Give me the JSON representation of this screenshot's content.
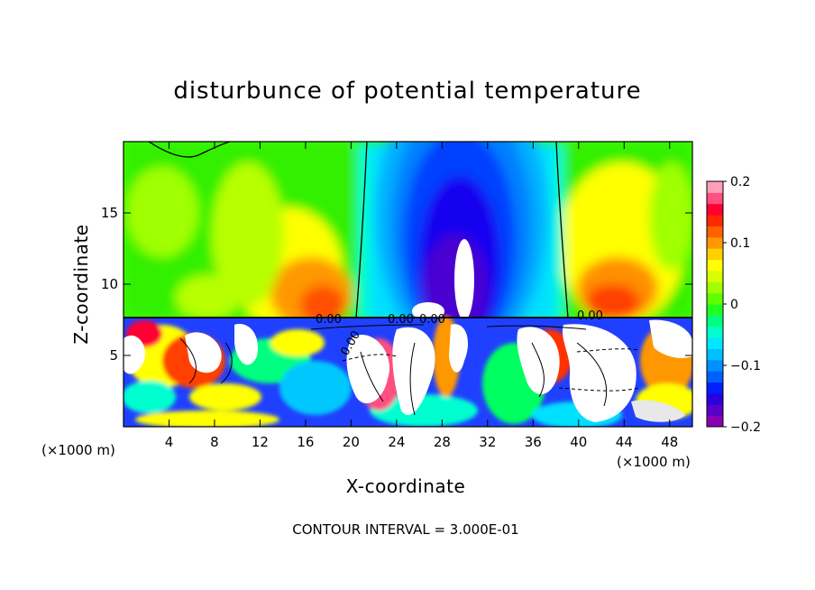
{
  "chart_data": {
    "type": "heatmap",
    "title": "disturbunce of potential temperature",
    "xlabel": "X-coordinate",
    "ylabel": "Z-coordinate",
    "x_unit_left": "(×1000 m)",
    "x_unit_right": "(×1000 m)",
    "xlim": [
      0,
      50
    ],
    "ylim": [
      0,
      20
    ],
    "x_ticks": [
      4,
      8,
      12,
      16,
      20,
      24,
      28,
      32,
      36,
      40,
      44,
      48
    ],
    "y_ticks": [
      5,
      10,
      15
    ],
    "colorbar": {
      "min": -0.2,
      "max": 0.2,
      "tick_values": [
        0.2,
        0.1,
        0,
        -0.1,
        -0.2
      ],
      "tick_labels": [
        "0.2",
        "0.1",
        "0",
        "−0.1",
        "−0.2"
      ],
      "colors": [
        "#8b00b4",
        "#5a00c8",
        "#2b00e0",
        "#0020ff",
        "#0060ff",
        "#0090ff",
        "#00bfff",
        "#00e8ff",
        "#00ffd0",
        "#00ff80",
        "#20ff20",
        "#60ff00",
        "#a0ff00",
        "#d8ff00",
        "#ffff00",
        "#ffd000",
        "#ff9800",
        "#ff6000",
        "#ff2800",
        "#ff0030",
        "#ff5080",
        "#ffa0b8"
      ]
    },
    "contour_labels": [
      "0.00",
      "0.00",
      "0.00",
      "0.00",
      "0.00"
    ],
    "contour_interval_text": "CONTOUR INTERVAL = 3.000E-01",
    "grid": false
  }
}
